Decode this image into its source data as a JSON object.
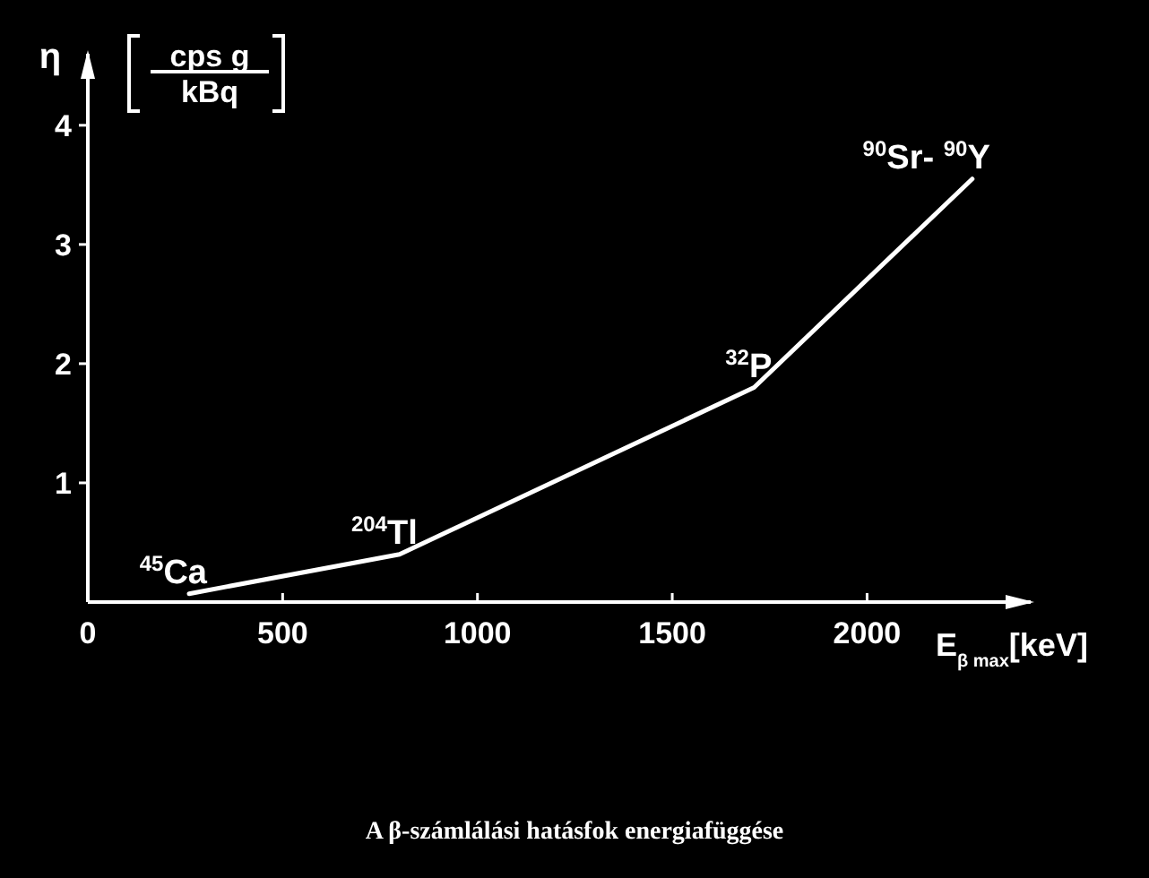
{
  "chart_data": {
    "type": "line",
    "title": "A β-számlálási hatásfok energiafüggése",
    "xlabel": "E$_{β max}$[keV]",
    "ylabel": "η",
    "annotations": [
      "cps g",
      "kBq",
      {
        "text": "$^{45}$Ca",
        "x": 260,
        "y": 0.07
      },
      {
        "text": "$^{204}$Tl",
        "x": 800,
        "y": 0.4
      },
      {
        "text": "$^{32}$P",
        "x": 1710,
        "y": 1.8
      },
      {
        "text": "$^{90}$Sr- $^{90}$Y",
        "x": 2270,
        "y": 3.55
      }
    ],
    "x": [
      260,
      800,
      1710,
      2270
    ],
    "series": [
      {
        "color": "#ffffff",
        "values": [
          0.07,
          0.4,
          1.8,
          3.55
        ]
      }
    ],
    "xlim": [
      0,
      2420
    ],
    "ylim": [
      0,
      4.6
    ],
    "xticks": [
      0,
      500,
      1000,
      1500,
      2000
    ],
    "yticks": [
      1,
      2,
      3,
      4
    ]
  }
}
